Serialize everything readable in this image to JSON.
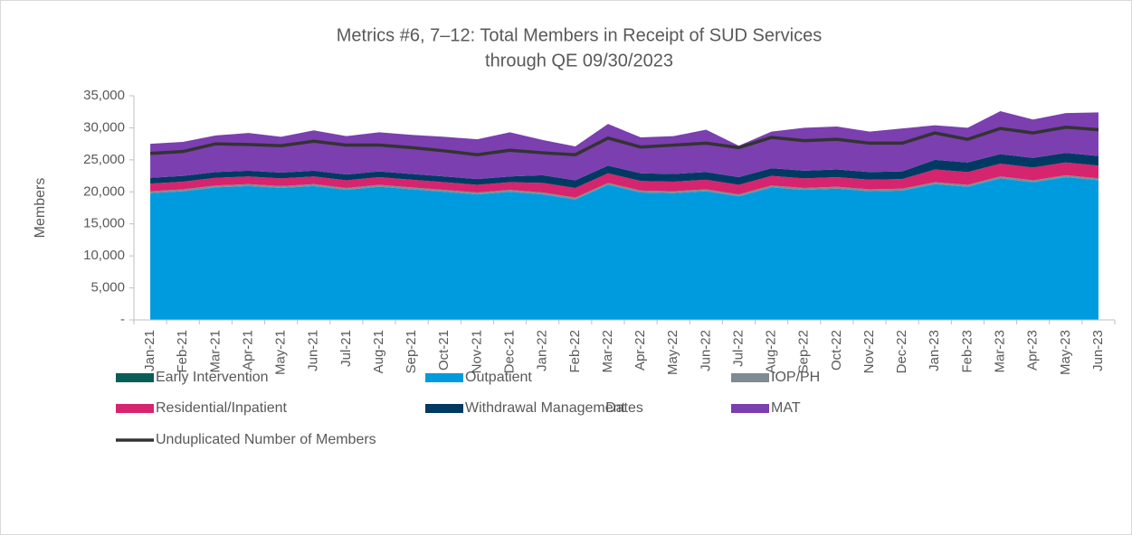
{
  "chart_data": {
    "type": "stacked_area",
    "title": "Metrics #6, 7–12: Total Members in Receipt of SUD Services",
    "subtitle": "through QE 09/30/2023",
    "x_label": "Dates",
    "y_label": "Members",
    "categories": [
      "Jan-21",
      "Feb-21",
      "Mar-21",
      "Apr-21",
      "May-21",
      "Jun-21",
      "Jul-21",
      "Aug-21",
      "Sep-21",
      "Oct-21",
      "Nov-21",
      "Dec-21",
      "Jan-22",
      "Feb-22",
      "Mar-22",
      "Apr-22",
      "May-22",
      "Jun-22",
      "Jul-22",
      "Aug-22",
      "Sep-22",
      "Oct-22",
      "Nov-22",
      "Dec-22",
      "Jan-23",
      "Feb-23",
      "Mar-23",
      "Apr-23",
      "May-23",
      "Jun-23"
    ],
    "ylim": [
      0,
      35000
    ],
    "yticks": [
      {
        "value": 0,
        "label": "-"
      },
      {
        "value": 5000,
        "label": "5,000"
      },
      {
        "value": 10000,
        "label": "10,000"
      },
      {
        "value": 15000,
        "label": "15,000"
      },
      {
        "value": 20000,
        "label": "20,000"
      },
      {
        "value": 25000,
        "label": "25,000"
      },
      {
        "value": 30000,
        "label": "30,000"
      },
      {
        "value": 35000,
        "label": "35,000"
      }
    ],
    "series": [
      {
        "name": "Early Intervention",
        "color": "#0b5e57",
        "values": [
          50,
          50,
          50,
          50,
          50,
          50,
          50,
          50,
          50,
          50,
          50,
          50,
          50,
          50,
          50,
          50,
          50,
          50,
          50,
          50,
          50,
          50,
          50,
          50,
          50,
          50,
          50,
          50,
          50,
          50
        ]
      },
      {
        "name": "Outpatient",
        "color": "#009ade",
        "values": [
          19750,
          20050,
          20650,
          20850,
          20550,
          20850,
          20250,
          20750,
          20350,
          19950,
          19550,
          19950,
          19550,
          18750,
          21050,
          19850,
          19750,
          20050,
          19250,
          20650,
          20250,
          20450,
          20050,
          20150,
          21150,
          20750,
          22050,
          21450,
          22250,
          21750
        ]
      },
      {
        "name": "IOP/PH",
        "color": "#808a92",
        "values": [
          300,
          300,
          300,
          300,
          300,
          300,
          300,
          300,
          300,
          300,
          300,
          300,
          300,
          300,
          300,
          300,
          300,
          300,
          300,
          300,
          300,
          300,
          300,
          300,
          300,
          300,
          300,
          300,
          300,
          300
        ]
      },
      {
        "name": "Residential/Inpatient",
        "color": "#d6246e",
        "values": [
          1200,
          1200,
          1200,
          1200,
          1200,
          1200,
          1200,
          1200,
          1200,
          1200,
          1200,
          1200,
          1500,
          1500,
          1500,
          1500,
          1500,
          1500,
          1500,
          1500,
          1500,
          1500,
          1500,
          1500,
          2000,
          2000,
          2000,
          2000,
          2000,
          2000
        ]
      },
      {
        "name": "Withdrawal Management",
        "color": "#003a63",
        "values": [
          900,
          900,
          900,
          900,
          900,
          900,
          900,
          900,
          900,
          900,
          900,
          900,
          1200,
          1200,
          1200,
          1200,
          1200,
          1200,
          1200,
          1200,
          1200,
          1200,
          1200,
          1200,
          1500,
          1500,
          1500,
          1500,
          1500,
          1500
        ]
      },
      {
        "name": "MAT",
        "color": "#7b3fb0",
        "values": [
          5300,
          5300,
          5700,
          5900,
          5600,
          6300,
          6000,
          6100,
          6100,
          6200,
          6200,
          6900,
          5500,
          5300,
          6500,
          5600,
          5900,
          6600,
          4900,
          5700,
          6700,
          6700,
          6300,
          6700,
          5400,
          5400,
          6700,
          6000,
          6200,
          6800
        ]
      },
      {
        "name": "Unduplicated Number of Members",
        "color": "#333333",
        "type": "line",
        "values": [
          26000,
          26300,
          27500,
          27400,
          27200,
          27900,
          27300,
          27300,
          26900,
          26400,
          25800,
          26500,
          26100,
          25800,
          28400,
          27000,
          27300,
          27600,
          26900,
          28500,
          28000,
          28200,
          27600,
          27600,
          29200,
          28200,
          29900,
          29200,
          30100,
          29700
        ]
      }
    ]
  }
}
